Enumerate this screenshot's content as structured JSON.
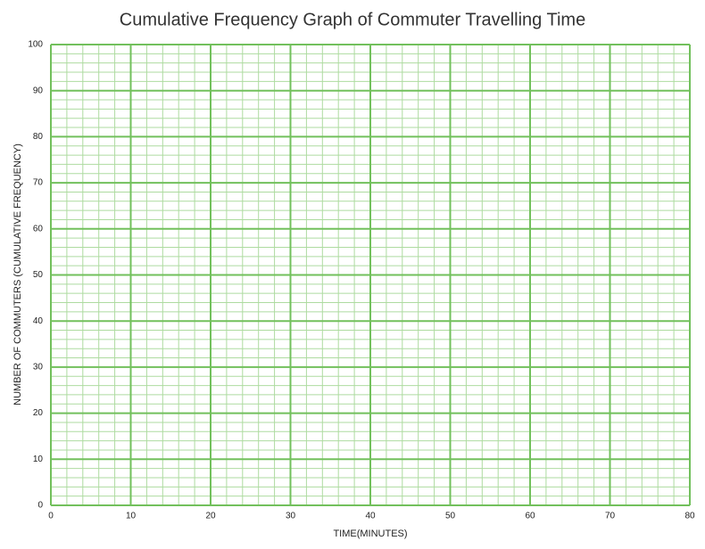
{
  "chart_data": {
    "type": "line",
    "title": "Cumulative Frequency Graph of Commuter Travelling Time",
    "x_label": "TIME(MINUTES)",
    "y_label": "NUMBER OF COMMUTERS (CUMULATIVE FREQUENCY)",
    "series": [],
    "xlim": [
      0,
      80
    ],
    "xticks": [
      0,
      10,
      20,
      30,
      40,
      50,
      60,
      70,
      80
    ],
    "ylim": [
      0,
      100
    ],
    "yticks": [
      0,
      10,
      20,
      30,
      40,
      50,
      60,
      70,
      80,
      90,
      100
    ],
    "xminorticks": [
      2,
      4,
      6,
      8,
      12,
      14,
      16,
      18,
      22,
      24,
      26,
      28,
      32,
      34,
      36,
      38,
      42,
      44,
      46,
      48,
      52,
      54,
      56,
      58,
      62,
      64,
      66,
      68,
      72,
      74,
      76,
      78
    ],
    "yminorticks": [
      2,
      4,
      6,
      8,
      12,
      14,
      16,
      18,
      22,
      24,
      26,
      28,
      32,
      34,
      36,
      38,
      42,
      44,
      46,
      48,
      52,
      54,
      56,
      58,
      62,
      64,
      66,
      68,
      72,
      74,
      76,
      78,
      82,
      84,
      86,
      88,
      92,
      94,
      96,
      98
    ],
    "grid": true,
    "grid_color": "#72c05c",
    "minor_grid_color": "#aedba0"
  }
}
